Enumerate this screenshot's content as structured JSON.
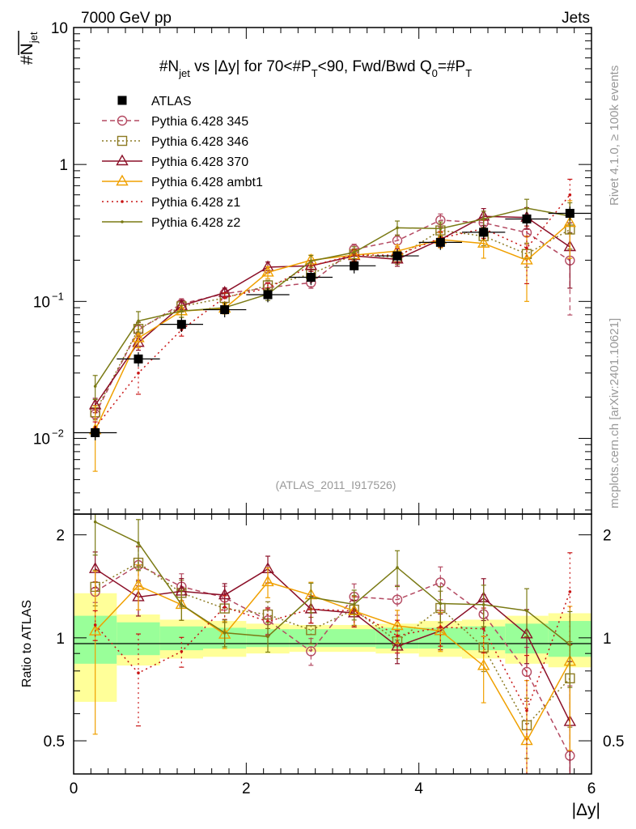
{
  "header": {
    "left": "7000 GeV pp",
    "right": "Jets"
  },
  "side": {
    "rivet": "Rivet 4.1.0, ≥ 100k events",
    "mcplots": "mcplots.cern.ch [arXiv:2401.10621]"
  },
  "chart_data": {
    "type": "line",
    "title_parts": {
      "a": "#N",
      "a_sub": "jet",
      "b": " vs |Δy| for 70<#P",
      "b_sub": "T",
      "c": "<90, Fwd/Bwd Q",
      "c_sub": "0",
      "d": "=#P",
      "d_sub": "T"
    },
    "watermark": "(ATLAS_2011_I917526)",
    "ylabel": {
      "main": "#N",
      "sub": "jet"
    },
    "ratio_ylabel": "Ratio to ATLAS",
    "xlabel": "|Δy|",
    "xlim": [
      0,
      6
    ],
    "ylim": [
      0.0028,
      10
    ],
    "ratio_ylim": [
      0.4,
      2.3
    ],
    "x_ticks": [
      "0",
      "2",
      "4",
      "6"
    ],
    "y_ticks": [
      {
        "v": 10,
        "main": "10",
        "sup": ""
      },
      {
        "v": 1,
        "main": "1",
        "sup": ""
      },
      {
        "v": 0.1,
        "main": "10",
        "sup": "−1"
      },
      {
        "v": 0.01,
        "main": "10",
        "sup": "−2"
      }
    ],
    "ratio_ticks": [
      "0.5",
      "1",
      "2"
    ],
    "x": [
      0.25,
      0.75,
      1.25,
      1.75,
      2.25,
      2.75,
      3.25,
      3.75,
      4.25,
      4.75,
      5.25,
      5.75
    ],
    "atlas": {
      "name": "ATLAS",
      "color": "#000000",
      "values": [
        0.011,
        0.038,
        0.068,
        0.087,
        0.112,
        0.15,
        0.182,
        0.215,
        0.27,
        0.32,
        0.4,
        0.44
      ]
    },
    "band_inner": [
      0.16,
      0.11,
      0.08,
      0.07,
      0.06,
      0.06,
      0.06,
      0.07,
      0.07,
      0.08,
      0.1,
      0.12
    ],
    "band_outer": [
      0.35,
      0.17,
      0.13,
      0.12,
      0.1,
      0.09,
      0.09,
      0.1,
      0.12,
      0.13,
      0.16,
      0.18
    ],
    "series": [
      {
        "name": "Pythia 6.428 345",
        "color": "#b44a62",
        "dash": "6,4",
        "marker": "circle",
        "values": [
          0.015,
          0.062,
          0.096,
          0.114,
          0.126,
          0.137,
          0.24,
          0.278,
          0.392,
          0.375,
          0.318,
          0.199
        ],
        "err": [
          0.07,
          0.13,
          0.09,
          0.08,
          0.09,
          0.09,
          0.09,
          0.1,
          0.11,
          0.14,
          0.18,
          0.6
        ]
      },
      {
        "name": "Pythia 6.428 346",
        "color": "#8c7a22",
        "dash": "2,3",
        "marker": "square",
        "values": [
          0.0155,
          0.063,
          0.092,
          0.106,
          0.131,
          0.158,
          0.22,
          0.21,
          0.33,
          0.3,
          0.222,
          0.335
        ],
        "err": [
          0.12,
          0.12,
          0.09,
          0.09,
          0.09,
          0.09,
          0.1,
          0.11,
          0.12,
          0.15,
          0.2,
          0.28
        ]
      },
      {
        "name": "Pythia 6.428 370",
        "color": "#8b1028",
        "dash": "",
        "marker": "triangle",
        "values": [
          0.0175,
          0.05,
          0.093,
          0.116,
          0.178,
          0.182,
          0.215,
          0.203,
          0.283,
          0.418,
          0.41,
          0.25
        ],
        "err": [
          0.12,
          0.12,
          0.09,
          0.08,
          0.09,
          0.09,
          0.09,
          0.11,
          0.12,
          0.14,
          0.18,
          0.5
        ]
      },
      {
        "name": "Pythia 6.428 ambt1",
        "color": "#f0a000",
        "dash": "",
        "marker": "triangle",
        "values": [
          0.0115,
          0.054,
          0.085,
          0.089,
          0.163,
          0.2,
          0.218,
          0.233,
          0.283,
          0.265,
          0.2,
          0.375
        ],
        "err": [
          0.5,
          0.15,
          0.1,
          0.09,
          0.1,
          0.09,
          0.1,
          0.11,
          0.13,
          0.22,
          0.5,
          0.45
        ]
      },
      {
        "name": "Pythia 6.428 z1",
        "color": "#c81414",
        "dash": "2,4",
        "marker": "dot",
        "values": [
          0.012,
          0.03,
          0.062,
          0.107,
          0.125,
          0.182,
          0.218,
          0.218,
          0.29,
          0.34,
          0.245,
          0.6
        ],
        "err": [
          0.1,
          0.3,
          0.1,
          0.08,
          0.09,
          0.09,
          0.1,
          0.11,
          0.12,
          0.15,
          0.45,
          0.3
        ]
      },
      {
        "name": "Pythia 6.428 z2",
        "color": "#7a7a14",
        "dash": "",
        "marker": "dot",
        "values": [
          0.024,
          0.072,
          0.085,
          0.09,
          0.113,
          0.197,
          0.228,
          0.345,
          0.34,
          0.4,
          0.48,
          0.42
        ],
        "err": [
          0.2,
          0.17,
          0.1,
          0.09,
          0.1,
          0.1,
          0.1,
          0.12,
          0.12,
          0.14,
          0.16,
          0.25
        ]
      }
    ]
  }
}
